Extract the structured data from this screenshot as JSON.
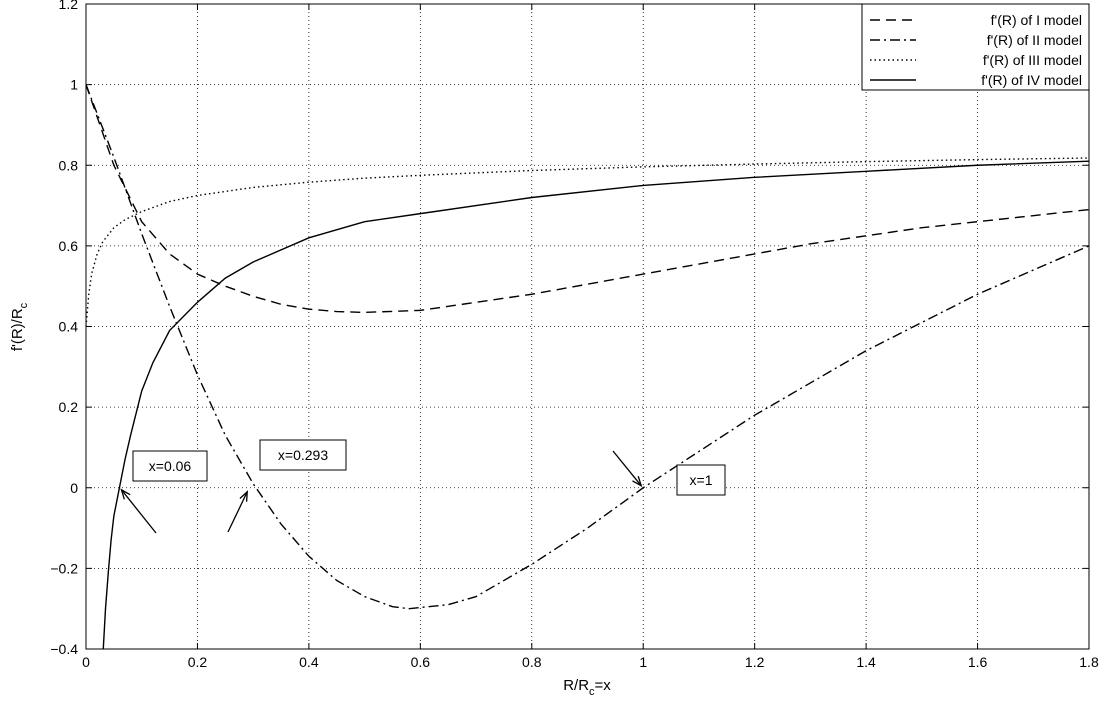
{
  "chart_data": {
    "type": "line",
    "title": "",
    "xlabel": "R/R",
    "xlabel_sub": "c",
    "xlabel_suffix": "=x",
    "ylabel": "f'(R)/R",
    "ylabel_sub": "c",
    "xlim": [
      0,
      1.8
    ],
    "ylim": [
      -0.4,
      1.2
    ],
    "xticks": [
      0,
      0.2,
      0.4,
      0.6,
      0.8,
      1,
      1.2,
      1.4,
      1.6,
      1.8
    ],
    "xtick_labels": [
      "0",
      "0.2",
      "0.4",
      "0.6",
      "0.8",
      "1",
      "1.2",
      "1.4",
      "1.6",
      "1.8"
    ],
    "yticks": [
      -0.4,
      -0.2,
      0,
      0.2,
      0.4,
      0.6,
      0.8,
      1,
      1.2
    ],
    "ytick_labels": [
      "−0.4",
      "−0.2",
      "0",
      "0.2",
      "0.4",
      "0.6",
      "0.8",
      "1",
      "1.2"
    ],
    "grid": true,
    "legend_position": "top-right",
    "series": [
      {
        "name": "f'(R) of I model",
        "style": "dashed",
        "x": [
          0,
          0.05,
          0.1,
          0.15,
          0.2,
          0.25,
          0.3,
          0.35,
          0.4,
          0.45,
          0.5,
          0.6,
          0.7,
          0.8,
          0.9,
          1.0,
          1.1,
          1.2,
          1.3,
          1.4,
          1.5,
          1.6,
          1.7,
          1.8
        ],
        "y": [
          1.0,
          0.8,
          0.66,
          0.58,
          0.53,
          0.5,
          0.475,
          0.455,
          0.443,
          0.437,
          0.435,
          0.44,
          0.46,
          0.48,
          0.505,
          0.53,
          0.555,
          0.58,
          0.605,
          0.625,
          0.645,
          0.66,
          0.675,
          0.69
        ]
      },
      {
        "name": "f'(R) of II model",
        "style": "dashdot",
        "x": [
          0,
          0.05,
          0.1,
          0.15,
          0.2,
          0.25,
          0.3,
          0.35,
          0.4,
          0.45,
          0.5,
          0.55,
          0.58,
          0.65,
          0.7,
          0.8,
          0.9,
          1.0,
          1.1,
          1.2,
          1.3,
          1.4,
          1.5,
          1.6,
          1.7,
          1.8
        ],
        "y": [
          1.0,
          0.82,
          0.63,
          0.45,
          0.28,
          0.13,
          0.01,
          -0.09,
          -0.17,
          -0.23,
          -0.27,
          -0.295,
          -0.3,
          -0.29,
          -0.27,
          -0.19,
          -0.1,
          0.0,
          0.09,
          0.18,
          0.26,
          0.34,
          0.41,
          0.48,
          0.54,
          0.6
        ]
      },
      {
        "name": "f'(R) of III model",
        "style": "dotted",
        "x": [
          0,
          0.005,
          0.01,
          0.02,
          0.03,
          0.05,
          0.07,
          0.1,
          0.15,
          0.2,
          0.3,
          0.4,
          0.5,
          0.6,
          0.8,
          1.0,
          1.2,
          1.4,
          1.6,
          1.8
        ],
        "y": [
          0.4,
          0.48,
          0.53,
          0.58,
          0.61,
          0.645,
          0.665,
          0.685,
          0.71,
          0.725,
          0.745,
          0.758,
          0.768,
          0.775,
          0.787,
          0.796,
          0.803,
          0.809,
          0.814,
          0.818
        ]
      },
      {
        "name": "f'(R) of IV model",
        "style": "solid",
        "x": [
          0.031,
          0.035,
          0.04,
          0.045,
          0.05,
          0.06,
          0.07,
          0.08,
          0.1,
          0.12,
          0.15,
          0.2,
          0.25,
          0.3,
          0.4,
          0.5,
          0.6,
          0.8,
          1.0,
          1.2,
          1.4,
          1.6,
          1.8
        ],
        "y": [
          -0.4,
          -0.3,
          -0.21,
          -0.13,
          -0.07,
          0.0,
          0.07,
          0.13,
          0.24,
          0.31,
          0.39,
          0.46,
          0.52,
          0.56,
          0.62,
          0.66,
          0.68,
          0.72,
          0.75,
          0.77,
          0.785,
          0.8,
          0.81
        ]
      }
    ],
    "annotations": [
      {
        "text": "x=0.06",
        "x": 0.06,
        "y": 0.0
      },
      {
        "text": "x=0.293",
        "x": 0.293,
        "y": 0.0
      },
      {
        "text": "x=1",
        "x": 1.0,
        "y": 0.0
      }
    ]
  }
}
